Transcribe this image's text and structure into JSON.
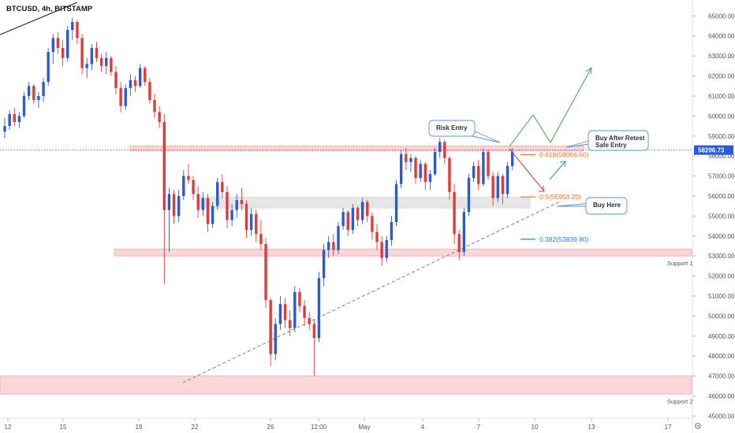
{
  "header": {
    "symbol": "BTCUSD",
    "timeframe": "4h",
    "exchange": "BITSTAMP",
    "title": "BTCUSD, 4h, BITSTAMP"
  },
  "colors": {
    "up": "#2a5ad6",
    "down": "#e53935",
    "zone_fill": "#f8d7da",
    "zone_stroke": "#f0a8ad",
    "grey_zone": "#e6e6e6",
    "fib_orange": "#e9731d",
    "fib_blue": "#2a7de1",
    "arrow_green": "#3aa93a",
    "arrow_red": "#e53935",
    "arrow_teal": "#2f8fb0",
    "callout_border": "#5b8fd9",
    "price_line": "#2a5ad6",
    "price_label_bg": "#2a5ad6"
  },
  "chart_data": {
    "type": "candlestick",
    "title": "BTCUSD, 4h, BITSTAMP",
    "ylim": [
      44900,
      65800
    ],
    "y_ticks": [
      45000,
      46000,
      47000,
      48000,
      49000,
      50000,
      51000,
      52000,
      53000,
      54000,
      55000,
      56000,
      57000,
      58000,
      59000,
      60000,
      61000,
      62000,
      63000,
      64000,
      65000
    ],
    "x_ticks": [
      "12",
      "15",
      "19",
      "22",
      "26",
      "12:00",
      "May",
      "4",
      "7",
      "10",
      "13",
      "17"
    ],
    "current_price": "58296.73",
    "current_price_value": 58296.73,
    "zones": [
      {
        "name": "resistance",
        "low": 58250,
        "high": 58500
      },
      {
        "name": "buy-zone",
        "low": 55400,
        "high": 55950
      },
      {
        "name": "support-1",
        "low": 53000,
        "high": 53350,
        "label": "Support 1"
      },
      {
        "name": "support-2",
        "low": 46100,
        "high": 47000,
        "label": "Support 2"
      }
    ],
    "fib_levels": [
      {
        "label": "0.618(58066.60)",
        "price": 58066.6
      },
      {
        "label": "0.5(55953.20)",
        "price": 55953.2
      },
      {
        "label": "0.382(53839.80)",
        "price": 53839.8
      }
    ],
    "annotations": [
      {
        "text": "Risk Entry"
      },
      {
        "text": "Buy After Retest"
      },
      {
        "text": "Safe Entry"
      },
      {
        "text": "Buy Here"
      }
    ],
    "trendline": {
      "x1": "Apr 22",
      "y1": 46700,
      "x2": "May 10",
      "y2": 55500
    },
    "candles": [
      [
        59220,
        59900,
        58900,
        59500
      ],
      [
        59500,
        60300,
        59300,
        60100
      ],
      [
        60100,
        60400,
        59500,
        59700
      ],
      [
        59700,
        60200,
        59400,
        60000
      ],
      [
        60000,
        61200,
        59900,
        61000
      ],
      [
        61000,
        61700,
        60800,
        61500
      ],
      [
        61500,
        61600,
        60600,
        60800
      ],
      [
        60800,
        61200,
        60400,
        61000
      ],
      [
        61000,
        61900,
        60700,
        61700
      ],
      [
        61700,
        63400,
        61500,
        63200
      ],
      [
        63200,
        64100,
        62600,
        63900
      ],
      [
        63900,
        64200,
        63100,
        63400
      ],
      [
        63400,
        63800,
        62500,
        62900
      ],
      [
        62900,
        64500,
        62700,
        64300
      ],
      [
        64300,
        64900,
        63800,
        64700
      ],
      [
        64700,
        64800,
        63600,
        63900
      ],
      [
        63900,
        64100,
        62100,
        62400
      ],
      [
        62400,
        62900,
        61900,
        62600
      ],
      [
        62600,
        63600,
        62300,
        63400
      ],
      [
        63400,
        63700,
        62700,
        62900
      ],
      [
        62900,
        63100,
        62200,
        62500
      ],
      [
        62500,
        63200,
        62100,
        62900
      ],
      [
        62900,
        63000,
        62000,
        62200
      ],
      [
        62200,
        62500,
        61100,
        61400
      ],
      [
        61400,
        61700,
        60200,
        60500
      ],
      [
        60500,
        61600,
        60300,
        61400
      ],
      [
        61400,
        62100,
        61000,
        61800
      ],
      [
        61800,
        62000,
        61200,
        61500
      ],
      [
        61500,
        62600,
        61400,
        62400
      ],
      [
        62400,
        62500,
        61500,
        61700
      ],
      [
        61700,
        61900,
        60600,
        60800
      ],
      [
        60800,
        61100,
        59900,
        60200
      ],
      [
        60200,
        60500,
        59400,
        59700
      ],
      [
        59700,
        60100,
        51600,
        55300
      ],
      [
        55300,
        56400,
        53200,
        56100
      ],
      [
        56100,
        56300,
        54600,
        55000
      ],
      [
        55000,
        56300,
        54700,
        56000
      ],
      [
        56000,
        57300,
        55800,
        57000
      ],
      [
        57000,
        57600,
        56600,
        56800
      ],
      [
        56800,
        57000,
        55800,
        56100
      ],
      [
        56100,
        56500,
        54900,
        55300
      ],
      [
        55300,
        56200,
        55000,
        55900
      ],
      [
        55900,
        56100,
        54200,
        54600
      ],
      [
        54600,
        55700,
        54400,
        55500
      ],
      [
        55500,
        56900,
        55300,
        56700
      ],
      [
        56700,
        57100,
        55900,
        56200
      ],
      [
        56200,
        56500,
        54400,
        54800
      ],
      [
        54800,
        55600,
        54500,
        55300
      ],
      [
        55300,
        56100,
        54900,
        55800
      ],
      [
        55800,
        56400,
        55300,
        55600
      ],
      [
        55600,
        55800,
        53900,
        54300
      ],
      [
        54300,
        55400,
        54000,
        55100
      ],
      [
        55100,
        55300,
        53700,
        54100
      ],
      [
        54100,
        54800,
        53300,
        53600
      ],
      [
        53600,
        53900,
        50400,
        50800
      ],
      [
        50800,
        50900,
        47500,
        48100
      ],
      [
        48100,
        49900,
        47800,
        49600
      ],
      [
        49600,
        51000,
        49300,
        50600
      ],
      [
        50600,
        50900,
        49400,
        49800
      ],
      [
        49800,
        50300,
        49000,
        49400
      ],
      [
        49400,
        51500,
        49200,
        51200
      ],
      [
        51200,
        51400,
        50200,
        50500
      ],
      [
        50500,
        50800,
        49500,
        49900
      ],
      [
        49900,
        50200,
        49300,
        49600
      ],
      [
        49600,
        49800,
        47000,
        48900
      ],
      [
        48900,
        52200,
        48700,
        51900
      ],
      [
        51900,
        53600,
        51500,
        53300
      ],
      [
        53300,
        54000,
        52900,
        53700
      ],
      [
        53700,
        54100,
        53000,
        53300
      ],
      [
        53300,
        54700,
        53100,
        54500
      ],
      [
        54500,
        55400,
        54300,
        55200
      ],
      [
        55200,
        55300,
        54000,
        54300
      ],
      [
        54300,
        55600,
        54100,
        55400
      ],
      [
        55400,
        55500,
        54500,
        54800
      ],
      [
        54800,
        55900,
        54600,
        55700
      ],
      [
        55700,
        55800,
        54700,
        55000
      ],
      [
        55000,
        55200,
        53800,
        54200
      ],
      [
        54200,
        54600,
        53300,
        53700
      ],
      [
        53700,
        54000,
        52500,
        52900
      ],
      [
        52900,
        54000,
        52700,
        53800
      ],
      [
        53800,
        55000,
        53500,
        54700
      ],
      [
        54700,
        56800,
        54500,
        56600
      ],
      [
        56600,
        58300,
        56400,
        58100
      ],
      [
        58100,
        58400,
        57300,
        57700
      ],
      [
        57700,
        58100,
        57200,
        57900
      ],
      [
        57900,
        58000,
        56600,
        56900
      ],
      [
        56900,
        57800,
        56700,
        57600
      ],
      [
        57600,
        57700,
        56300,
        56700
      ],
      [
        56700,
        57300,
        56300,
        57100
      ],
      [
        57100,
        58400,
        57000,
        58200
      ],
      [
        58200,
        58900,
        57900,
        58700
      ],
      [
        58700,
        58800,
        57600,
        57900
      ],
      [
        57900,
        58000,
        55800,
        56200
      ],
      [
        56200,
        56600,
        53600,
        54100
      ],
      [
        54100,
        54300,
        52800,
        53200
      ],
      [
        53200,
        55400,
        53000,
        55200
      ],
      [
        55200,
        57100,
        55000,
        56900
      ],
      [
        56900,
        57700,
        56700,
        57500
      ],
      [
        57500,
        57800,
        56300,
        56600
      ],
      [
        56600,
        58400,
        56500,
        58200
      ],
      [
        58200,
        58300,
        56800,
        57000
      ],
      [
        57000,
        57200,
        55500,
        55900
      ],
      [
        55900,
        57200,
        55700,
        57000
      ],
      [
        57000,
        57100,
        55600,
        56100
      ],
      [
        56100,
        57700,
        55900,
        57500
      ],
      [
        57500,
        58400,
        57300,
        58200
      ]
    ]
  }
}
